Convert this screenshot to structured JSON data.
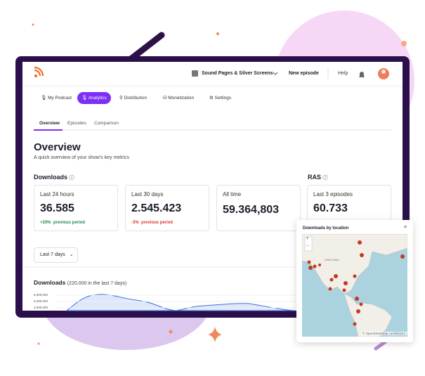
{
  "header": {
    "podcast": "Sound Pages & Silver Screens",
    "new_episode": "New episode",
    "help": "Help"
  },
  "nav": [
    "My Podcast",
    "Analytics",
    "Distribution",
    "Monetization",
    "Settings"
  ],
  "tabs": [
    "Overview",
    "Episodes",
    "Comparison"
  ],
  "page": {
    "title": "Overview",
    "subtitle": "A quick overview of your show's key metrics"
  },
  "sections": {
    "downloads": "Downloads",
    "ras": "RAS"
  },
  "cards": [
    {
      "label": "Last 24 hours",
      "value": "36.585",
      "change": "+20%",
      "change_note": "previous period"
    },
    {
      "label": "Last 30 days",
      "value": "2.545.423",
      "change": "-3%",
      "change_note": "previous period"
    },
    {
      "label": "All time",
      "value": "59.364,803"
    },
    {
      "label": "Last 3 episodes",
      "value": "60.733"
    }
  ],
  "range": "Last 7 days",
  "chart": {
    "title": "Downloads",
    "note": "(220.000 in the last 7 days)",
    "yticks": [
      "6,000,000",
      "5,000,000",
      "4,000,000"
    ]
  },
  "map": {
    "title": "Downloads by location",
    "zoom_in": "+",
    "zoom_out": "−",
    "label": "United States",
    "attribution": "© OpenStreetMap contributors"
  }
}
